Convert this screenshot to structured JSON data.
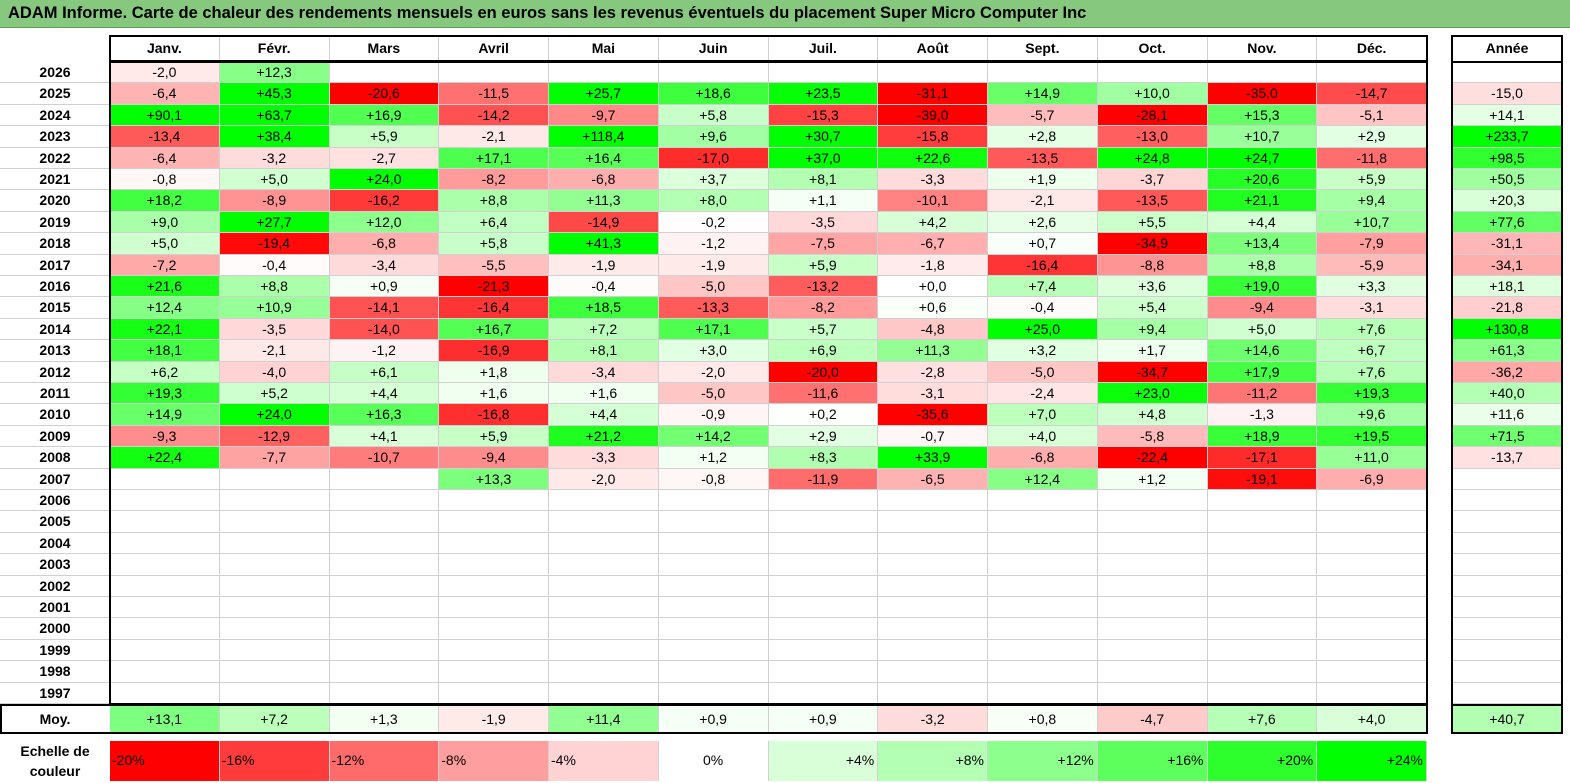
{
  "title": "ADAM Informe. Carte de chaleur des rendements mensuels en euros sans les revenus éventuels du placement Super Micro Computer Inc",
  "chart_data": {
    "type": "heatmap",
    "title": "ADAM Informe. Carte de chaleur des rendements mensuels en euros sans les revenus éventuels du placement Super Micro Computer Inc",
    "columns": [
      "Janv.",
      "Févr.",
      "Mars",
      "Avril",
      "Mai",
      "Juin",
      "Juil.",
      "Août",
      "Sept.",
      "Oct.",
      "Nov.",
      "Déc."
    ],
    "year_column": "Année",
    "rows": [
      {
        "year": "2026",
        "values": [
          "-2,0",
          "+12,3",
          "",
          "",
          "",
          "",
          "",
          "",
          "",
          "",
          "",
          ""
        ],
        "annual": ""
      },
      {
        "year": "2025",
        "values": [
          "-6,4",
          "+45,3",
          "-20,6",
          "-11,5",
          "+25,7",
          "+18,6",
          "+23,5",
          "-31,1",
          "+14,9",
          "+10,0",
          "-35,0",
          "-14,7"
        ],
        "annual": "-15,0"
      },
      {
        "year": "2024",
        "values": [
          "+90,1",
          "+63,7",
          "+16,9",
          "-14,2",
          "-9,7",
          "+5,8",
          "-15,3",
          "-39,0",
          "-5,7",
          "-28,1",
          "+15,3",
          "-5,1"
        ],
        "annual": "+14,1"
      },
      {
        "year": "2023",
        "values": [
          "-13,4",
          "+38,4",
          "+5,9",
          "-2,1",
          "+118,4",
          "+9,6",
          "+30,7",
          "-15,8",
          "+2,8",
          "-13,0",
          "+10,7",
          "+2,9"
        ],
        "annual": "+233,7"
      },
      {
        "year": "2022",
        "values": [
          "-6,4",
          "-3,2",
          "-2,7",
          "+17,1",
          "+16,4",
          "-17,0",
          "+37,0",
          "+22,6",
          "-13,5",
          "+24,8",
          "+24,7",
          "-11,8"
        ],
        "annual": "+98,5"
      },
      {
        "year": "2021",
        "values": [
          "-0,8",
          "+5,0",
          "+24,0",
          "-8,2",
          "-6,8",
          "+3,7",
          "+8,1",
          "-3,3",
          "+1,9",
          "-3,7",
          "+20,6",
          "+5,9"
        ],
        "annual": "+50,5"
      },
      {
        "year": "2020",
        "values": [
          "+18,2",
          "-8,9",
          "-16,2",
          "+8,8",
          "+11,3",
          "+8,0",
          "+1,1",
          "-10,1",
          "-2,1",
          "-13,5",
          "+21,1",
          "+9,4"
        ],
        "annual": "+20,3"
      },
      {
        "year": "2019",
        "values": [
          "+9,0",
          "+27,7",
          "+12,0",
          "+6,4",
          "-14,9",
          "-0,2",
          "-3,5",
          "+4,2",
          "+2,6",
          "+5,5",
          "+4,4",
          "+10,7"
        ],
        "annual": "+77,6"
      },
      {
        "year": "2018",
        "values": [
          "+5,0",
          "-19,4",
          "-6,8",
          "+5,8",
          "+41,3",
          "-1,2",
          "-7,5",
          "-6,7",
          "+0,7",
          "-34,9",
          "+13,4",
          "-7,9"
        ],
        "annual": "-31,1"
      },
      {
        "year": "2017",
        "values": [
          "-7,2",
          "-0,4",
          "-3,4",
          "-5,5",
          "-1,9",
          "-1,9",
          "+5,9",
          "-1,8",
          "-16,4",
          "-8,8",
          "+8,8",
          "-5,9"
        ],
        "annual": "-34,1"
      },
      {
        "year": "2016",
        "values": [
          "+21,6",
          "+8,8",
          "+0,9",
          "-21,3",
          "-0,4",
          "-5,0",
          "-13,2",
          "+0,0",
          "+7,4",
          "+3,6",
          "+19,0",
          "+3,3"
        ],
        "annual": "+18,1"
      },
      {
        "year": "2015",
        "values": [
          "+12,4",
          "+10,9",
          "-14,1",
          "-16,4",
          "+18,5",
          "-13,3",
          "-8,2",
          "+0,6",
          "-0,4",
          "+5,4",
          "-9,4",
          "-3,1"
        ],
        "annual": "-21,8"
      },
      {
        "year": "2014",
        "values": [
          "+22,1",
          "-3,5",
          "-14,0",
          "+16,7",
          "+7,2",
          "+17,1",
          "+5,7",
          "-4,8",
          "+25,0",
          "+9,4",
          "+5,0",
          "+7,6"
        ],
        "annual": "+130,8"
      },
      {
        "year": "2013",
        "values": [
          "+18,1",
          "-2,1",
          "-1,2",
          "-16,9",
          "+8,1",
          "+3,0",
          "+6,9",
          "+11,3",
          "+3,2",
          "+1,7",
          "+14,6",
          "+6,7"
        ],
        "annual": "+61,3"
      },
      {
        "year": "2012",
        "values": [
          "+6,2",
          "-4,0",
          "+6,1",
          "+1,8",
          "-3,4",
          "-2,0",
          "-20,0",
          "-2,8",
          "-5,0",
          "-34,7",
          "+17,9",
          "+7,6"
        ],
        "annual": "-36,2"
      },
      {
        "year": "2011",
        "values": [
          "+19,3",
          "+5,2",
          "+4,4",
          "+1,6",
          "+1,6",
          "-5,0",
          "-11,6",
          "-3,1",
          "-2,4",
          "+23,0",
          "-11,2",
          "+19,3"
        ],
        "annual": "+40,0"
      },
      {
        "year": "2010",
        "values": [
          "+14,9",
          "+24,0",
          "+16,3",
          "-16,8",
          "+4,4",
          "-0,9",
          "+0,2",
          "-35,6",
          "+7,0",
          "+4,8",
          "-1,3",
          "+9,6"
        ],
        "annual": "+11,6"
      },
      {
        "year": "2009",
        "values": [
          "-9,3",
          "-12,9",
          "+4,1",
          "+5,9",
          "+21,2",
          "+14,2",
          "+2,9",
          "-0,7",
          "+4,0",
          "-5,8",
          "+18,9",
          "+19,5"
        ],
        "annual": "+71,5"
      },
      {
        "year": "2008",
        "values": [
          "+22,4",
          "-7,7",
          "-10,7",
          "-9,4",
          "-3,3",
          "+1,2",
          "+8,3",
          "+33,9",
          "-6,8",
          "-22,4",
          "-17,1",
          "+11,0"
        ],
        "annual": "-13,7"
      },
      {
        "year": "2007",
        "values": [
          "",
          "",
          "",
          "+13,3",
          "-2,0",
          "-0,8",
          "-11,9",
          "-6,5",
          "+12,4",
          "+1,2",
          "-19,1",
          "-6,9"
        ],
        "annual": ""
      },
      {
        "year": "2006",
        "values": [
          "",
          "",
          "",
          "",
          "",
          "",
          "",
          "",
          "",
          "",
          "",
          ""
        ],
        "annual": ""
      },
      {
        "year": "2005",
        "values": [
          "",
          "",
          "",
          "",
          "",
          "",
          "",
          "",
          "",
          "",
          "",
          ""
        ],
        "annual": ""
      },
      {
        "year": "2004",
        "values": [
          "",
          "",
          "",
          "",
          "",
          "",
          "",
          "",
          "",
          "",
          "",
          ""
        ],
        "annual": ""
      },
      {
        "year": "2003",
        "values": [
          "",
          "",
          "",
          "",
          "",
          "",
          "",
          "",
          "",
          "",
          "",
          ""
        ],
        "annual": ""
      },
      {
        "year": "2002",
        "values": [
          "",
          "",
          "",
          "",
          "",
          "",
          "",
          "",
          "",
          "",
          "",
          ""
        ],
        "annual": ""
      },
      {
        "year": "2001",
        "values": [
          "",
          "",
          "",
          "",
          "",
          "",
          "",
          "",
          "",
          "",
          "",
          ""
        ],
        "annual": ""
      },
      {
        "year": "2000",
        "values": [
          "",
          "",
          "",
          "",
          "",
          "",
          "",
          "",
          "",
          "",
          "",
          ""
        ],
        "annual": ""
      },
      {
        "year": "1999",
        "values": [
          "",
          "",
          "",
          "",
          "",
          "",
          "",
          "",
          "",
          "",
          "",
          ""
        ],
        "annual": ""
      },
      {
        "year": "1998",
        "values": [
          "",
          "",
          "",
          "",
          "",
          "",
          "",
          "",
          "",
          "",
          "",
          ""
        ],
        "annual": ""
      },
      {
        "year": "1997",
        "values": [
          "",
          "",
          "",
          "",
          "",
          "",
          "",
          "",
          "",
          "",
          "",
          ""
        ],
        "annual": ""
      }
    ],
    "average": {
      "label": "Moy.",
      "values": [
        "+13,1",
        "+7,2",
        "+1,3",
        "-1,9",
        "+11,4",
        "+0,9",
        "+0,9",
        "-3,2",
        "+0,8",
        "-4,7",
        "+7,6",
        "+4,0"
      ],
      "annual": "+40,7"
    },
    "color_scale": {
      "label": "Echelle de couleur",
      "stops": [
        "-20%",
        "-16%",
        "-12%",
        "-8%",
        "-4%",
        "0%",
        "+4%",
        "+8%",
        "+12%",
        "+16%",
        "+20%",
        "+24%"
      ],
      "stop_values": [
        -20,
        -16,
        -12,
        -8,
        -4,
        0,
        4,
        8,
        12,
        16,
        20,
        24
      ],
      "stop_colors": [
        "#ff0000",
        "#ff3b3b",
        "#ff6b6b",
        "#ff9e9e",
        "#ffd3d3",
        "#ffffff",
        "#d9ffd9",
        "#b3ffb3",
        "#8cff8c",
        "#5cff5c",
        "#2cff2c",
        "#00ff00"
      ]
    }
  }
}
